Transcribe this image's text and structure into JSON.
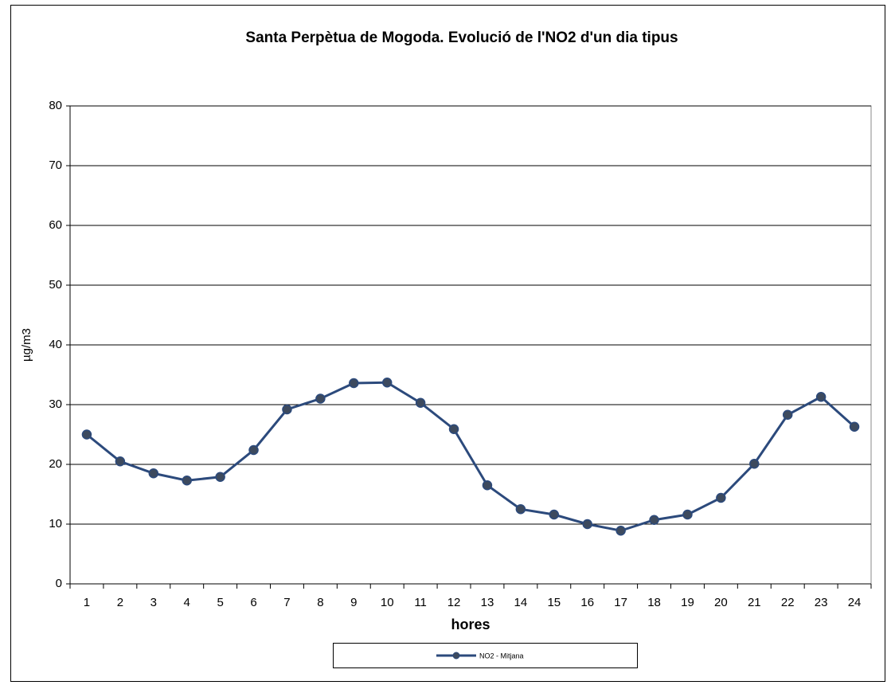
{
  "chart_data": {
    "type": "line",
    "title": "Santa Perpètua de Mogoda. Evolució de l'NO2 d'un dia tipus",
    "x_label": "hores",
    "y_label": "µg/m3",
    "categories": [
      "1",
      "2",
      "3",
      "4",
      "5",
      "6",
      "7",
      "8",
      "9",
      "10",
      "11",
      "12",
      "13",
      "14",
      "15",
      "16",
      "17",
      "18",
      "19",
      "20",
      "21",
      "22",
      "23",
      "24"
    ],
    "series": [
      {
        "name": "NO2 - Mitjana",
        "color": "#2c4a7c",
        "values": [
          25,
          20.5,
          18.5,
          17.3,
          17.9,
          22.4,
          29.2,
          31,
          33.6,
          33.7,
          30.3,
          25.9,
          16.5,
          12.5,
          11.6,
          10,
          8.9,
          10.7,
          11.6,
          14.4,
          20.1,
          28.3,
          31.3,
          26.3
        ]
      }
    ],
    "ylim": [
      0,
      80
    ],
    "yticks": [
      0,
      10,
      20,
      30,
      40,
      50,
      60,
      70,
      80
    ],
    "grid": true,
    "legend": "bottom"
  }
}
